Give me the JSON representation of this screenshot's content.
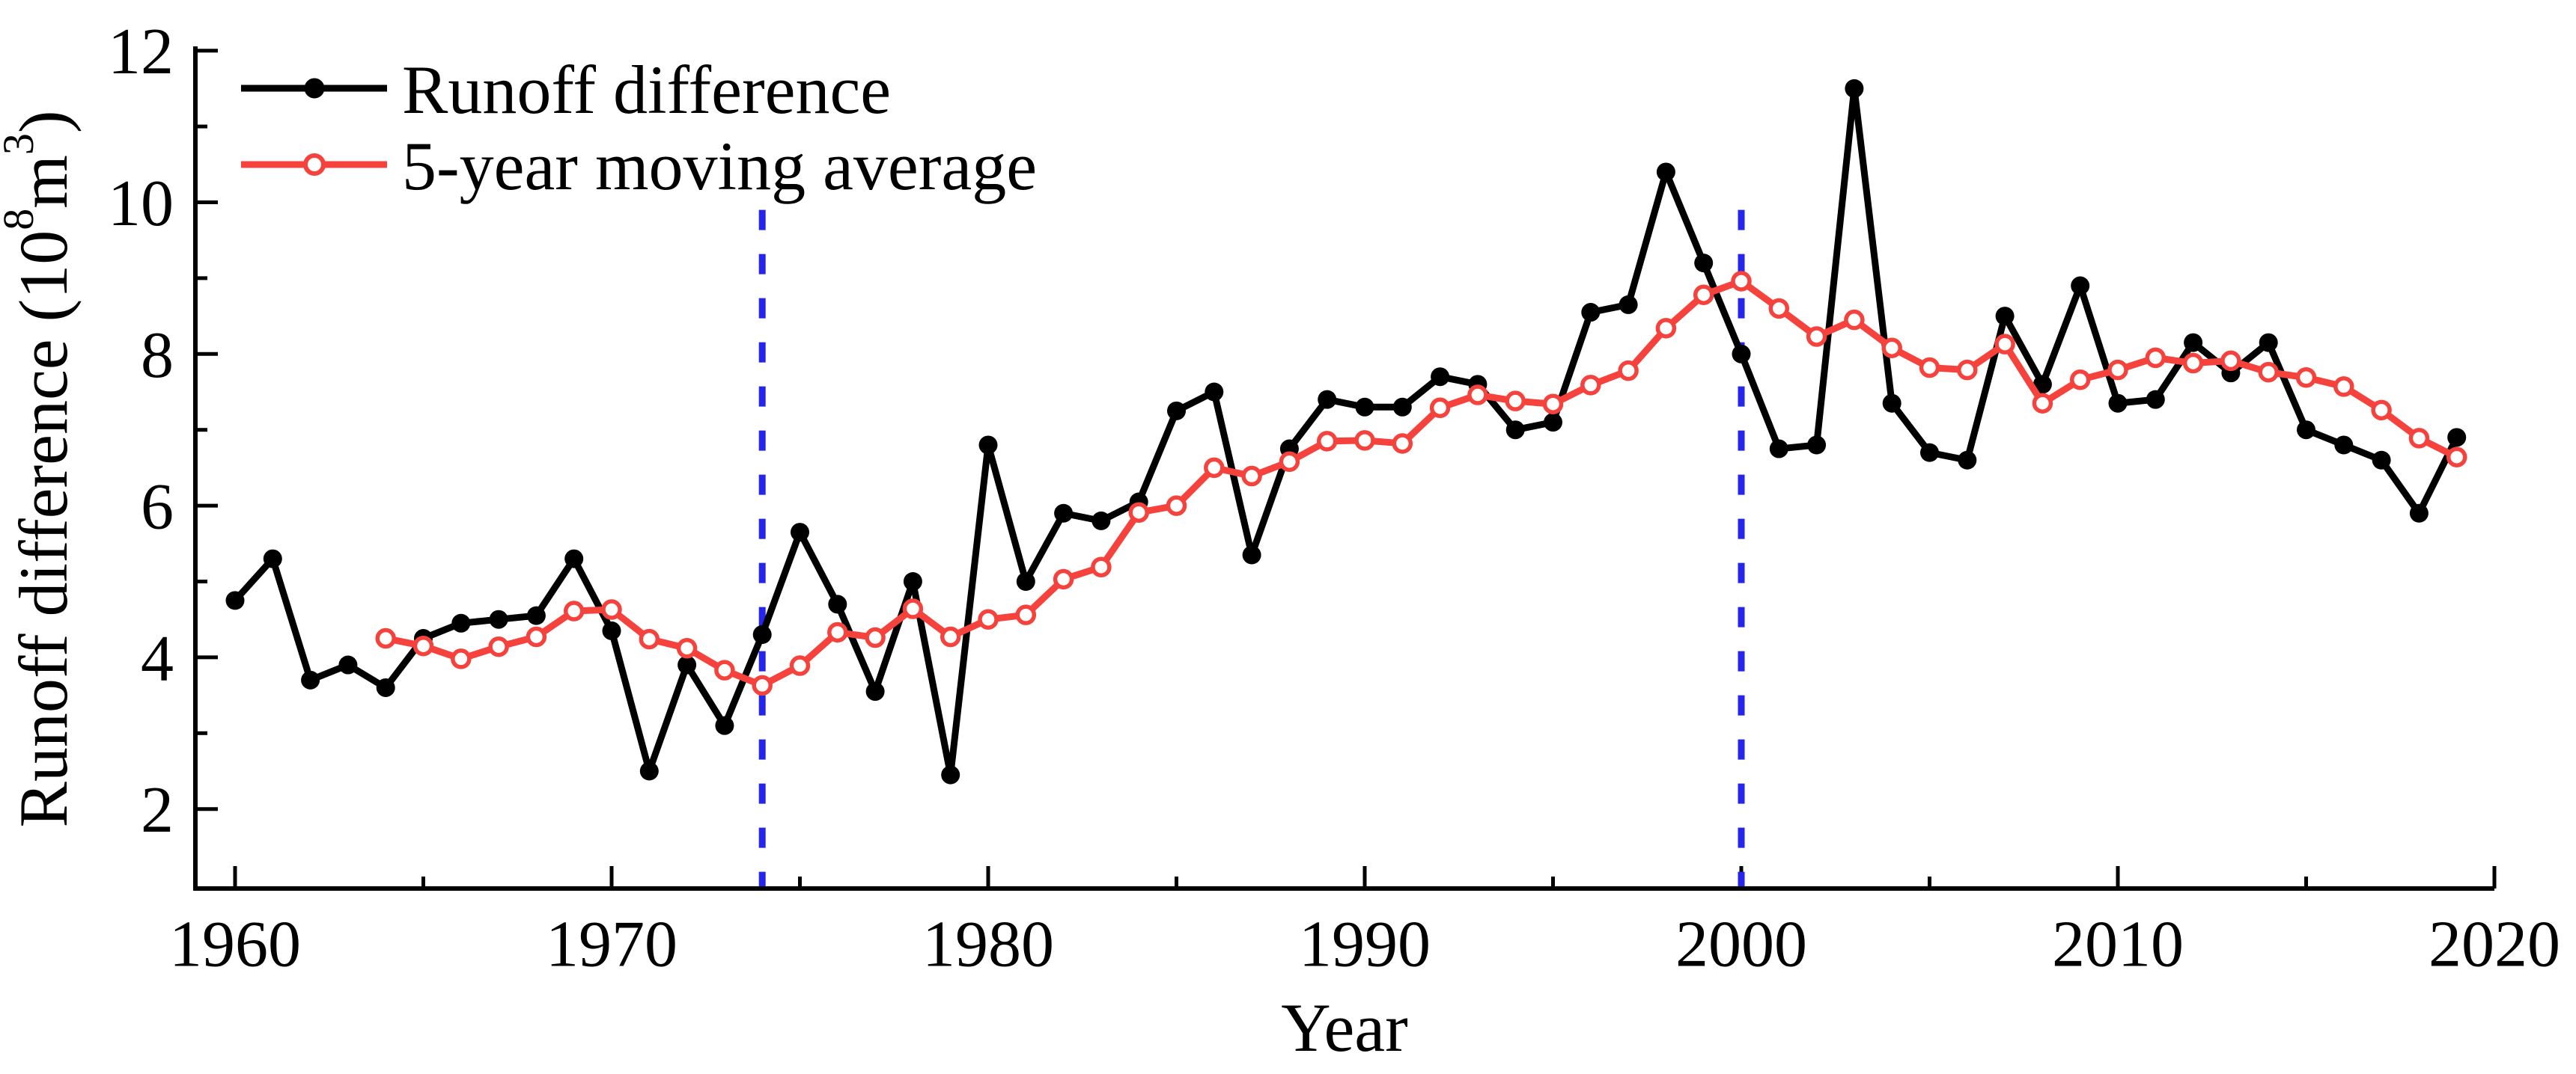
{
  "chart_data": {
    "type": "line",
    "title": "",
    "xlabel": "Year",
    "ylabel": "Runoff difference (10⁸m³)",
    "ylabel_parts": {
      "prefix": "Runoff difference (10",
      "sup1": "8",
      "mid": "m",
      "sup2": "3",
      "suffix": ")"
    },
    "x_axis": {
      "min": 1959,
      "max": 2020,
      "ticks_major": [
        1960,
        1970,
        1980,
        1990,
        2000,
        2010,
        2020
      ],
      "ticks_minor": [
        1965,
        1975,
        1985,
        1995,
        2005,
        2015
      ]
    },
    "y_axis": {
      "min": 1,
      "max": 12.2,
      "ticks_major": [
        2,
        4,
        6,
        8,
        10,
        12
      ],
      "ticks_minor": [
        3,
        5,
        7,
        9,
        11
      ]
    },
    "grid": "off",
    "legend_position": "top-left-inside",
    "series": [
      {
        "name": "Runoff difference",
        "color": "#000000",
        "marker": "filled-circle",
        "start_year": 1960,
        "values": [
          4.75,
          5.3,
          3.7,
          3.9,
          3.6,
          4.25,
          4.45,
          4.5,
          4.55,
          5.3,
          4.35,
          2.5,
          3.9,
          3.1,
          4.3,
          5.65,
          4.7,
          3.55,
          5.0,
          2.45,
          6.8,
          5.0,
          5.9,
          5.8,
          6.05,
          7.25,
          7.5,
          5.35,
          6.75,
          7.4,
          7.3,
          7.3,
          7.7,
          7.6,
          7.0,
          7.1,
          8.55,
          8.65,
          10.4,
          9.2,
          8.0,
          6.75,
          6.8,
          11.5,
          7.35,
          6.7,
          6.6,
          8.5,
          7.6,
          8.9,
          7.35,
          7.4,
          8.15,
          7.75,
          8.15,
          7.0,
          6.8,
          6.6,
          5.9,
          6.9
        ]
      },
      {
        "name": "5-year moving average",
        "color": "#f5423c",
        "marker": "open-circle",
        "start_year": 1964,
        "values": [
          4.25,
          4.15,
          3.98,
          4.14,
          4.27,
          4.61,
          4.63,
          4.24,
          4.12,
          3.83,
          3.63,
          3.89,
          4.33,
          4.26,
          4.64,
          4.27,
          4.5,
          4.56,
          5.03,
          5.19,
          5.91,
          6.0,
          6.5,
          6.39,
          6.58,
          6.85,
          6.86,
          6.82,
          7.29,
          7.46,
          7.38,
          7.34,
          7.59,
          7.78,
          8.34,
          8.78,
          8.96,
          8.6,
          8.23,
          8.45,
          8.08,
          7.82,
          7.79,
          8.13,
          7.35,
          7.66,
          7.79,
          7.95,
          7.88,
          7.91,
          7.76,
          7.69,
          7.57,
          7.26,
          6.89,
          6.64
        ]
      }
    ],
    "vlines": {
      "color": "#2525ec",
      "style": "dashed",
      "years": [
        1974,
        2000
      ],
      "top_value": 9.9
    },
    "colors": {
      "axis": "#000000",
      "background": "#ffffff"
    }
  }
}
